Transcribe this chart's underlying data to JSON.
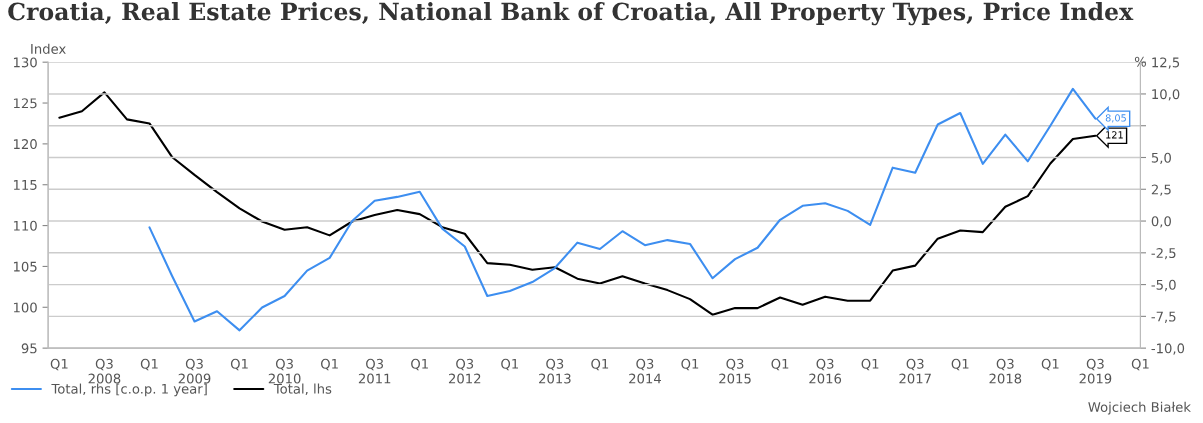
{
  "chart_data": {
    "type": "line",
    "title": "Croatia, Real Estate Prices, National Bank of Croatia, All Property Types, Price Index",
    "ylabel": "Index",
    "y2label": "%",
    "categories": [
      "Q1",
      null,
      "Q3\n2008",
      null,
      "Q1",
      null,
      "Q3\n2009",
      null,
      "Q1",
      null,
      "Q3\n2010",
      null,
      "Q1",
      null,
      "Q3\n2011",
      null,
      "Q1",
      null,
      "Q3\n2012",
      null,
      "Q1",
      null,
      "Q3\n2013",
      null,
      "Q1",
      null,
      "Q3\n2014",
      null,
      "Q1",
      null,
      "Q3\n2015",
      null,
      "Q1",
      null,
      "Q3\n2016",
      null,
      "Q1",
      null,
      "Q3\n2017",
      null,
      "Q1",
      null,
      "Q3\n2018",
      null,
      "Q1",
      null,
      "Q3\n2019",
      null,
      "Q1"
    ],
    "series": [
      {
        "name": "Total, rhs [c.o.p. 1 year]",
        "color": "#3d8ef0",
        "axis": "y2",
        "values": [
          null,
          null,
          null,
          null,
          -0.5,
          -4.3,
          -7.9,
          -7.1,
          -8.6,
          -6.8,
          -5.9,
          -3.9,
          -2.9,
          0.0,
          1.6,
          1.9,
          2.3,
          -0.6,
          -2.0,
          -5.9,
          -5.5,
          -4.8,
          -3.7,
          -1.7,
          -2.2,
          -0.8,
          -1.9,
          -1.5,
          -1.8,
          -4.5,
          -3.0,
          -2.1,
          0.1,
          1.2,
          1.4,
          0.8,
          -0.3,
          4.2,
          3.8,
          7.6,
          8.5,
          4.5,
          6.8,
          4.7,
          7.5,
          10.4,
          8.05,
          null,
          null
        ],
        "value_labels": [
          null,
          null,
          null,
          null,
          null,
          null,
          null,
          null,
          null,
          null,
          null,
          null,
          null,
          null,
          null,
          null,
          null,
          null,
          null,
          null,
          null,
          null,
          null,
          null,
          null,
          null,
          null,
          null,
          null,
          null,
          null,
          null,
          null,
          null,
          null,
          null,
          null,
          null,
          null,
          null,
          null,
          null,
          null,
          null,
          null,
          null,
          "8,05",
          null,
          null
        ]
      },
      {
        "name": "Total, lhs",
        "color": "#000000",
        "values": [
          123.2,
          124.0,
          126.3,
          123.0,
          122.5,
          118.4,
          116.2,
          114.1,
          112.1,
          110.5,
          109.5,
          109.8,
          108.8,
          110.5,
          111.3,
          111.9,
          111.4,
          109.8,
          109.0,
          105.4,
          105.2,
          104.6,
          104.9,
          103.5,
          102.9,
          103.8,
          102.9,
          102.1,
          101.0,
          99.1,
          99.9,
          99.9,
          101.2,
          100.3,
          101.3,
          100.8,
          100.8,
          104.5,
          105.1,
          108.4,
          109.4,
          109.2,
          112.3,
          113.6,
          117.6,
          120.6,
          121,
          null,
          null
        ],
        "value_labels": [
          null,
          null,
          null,
          null,
          null,
          null,
          null,
          null,
          null,
          null,
          null,
          null,
          null,
          null,
          null,
          null,
          null,
          null,
          null,
          null,
          null,
          null,
          null,
          null,
          null,
          null,
          null,
          null,
          null,
          null,
          null,
          null,
          null,
          null,
          null,
          null,
          null,
          null,
          null,
          null,
          null,
          null,
          null,
          null,
          null,
          null,
          "121",
          null,
          null
        ]
      }
    ],
    "ylim": [
      95,
      130
    ],
    "yticks": [
      95,
      100,
      105,
      110,
      115,
      120,
      125,
      130
    ],
    "y2lim": [
      -10,
      12.5
    ],
    "y2ticks": [
      {
        "value": -10,
        "label": "-10,0"
      },
      {
        "value": -7.5,
        "label": "-7,5"
      },
      {
        "value": -5,
        "label": "-5,0"
      },
      {
        "value": -2.5,
        "label": "-2,5"
      },
      {
        "value": 0,
        "label": "0,0"
      },
      {
        "value": 2.5,
        "label": "2,5"
      },
      {
        "value": 5,
        "label": "5,0"
      },
      {
        "value": 7.5,
        "label": null
      },
      {
        "value": 10,
        "label": "10,0"
      },
      {
        "value": 12.5,
        "label": "12,5"
      }
    ],
    "grid": "y2",
    "legend": "bottom",
    "marker": "none",
    "line_style": "solid",
    "annotations": [
      "Wojciech Białek"
    ]
  }
}
